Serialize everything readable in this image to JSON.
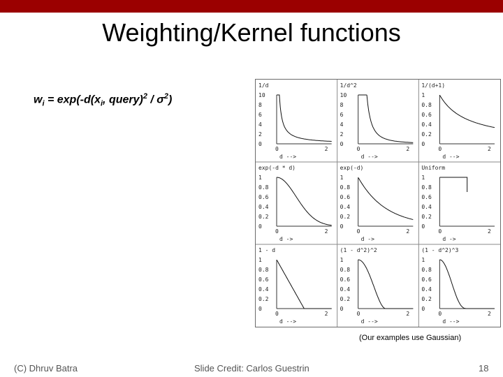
{
  "slide": {
    "title": "Weighting/Kernel functions",
    "formula": {
      "lead": "w",
      "lead_sub": "i",
      "eq": " = exp(-d(x",
      "x_sub": "i",
      "mid": ", query)",
      "sq1": "2",
      "div": " / σ",
      "sq2": "2",
      "close": ")"
    },
    "caption": "(Our examples use Gaussian)",
    "footer": {
      "left": "(C) Dhruv Batra",
      "center": "Slide Credit: Carlos Guestrin",
      "page": "18"
    },
    "accent_color": "#9b0000"
  },
  "figure": {
    "panels": [
      {
        "title": "1/d",
        "yticks": [
          "10",
          "8",
          "6",
          "4",
          "2",
          "0"
        ],
        "xticks": [
          "0",
          "2"
        ],
        "xlabel": "d -->",
        "kernel": "inv"
      },
      {
        "title": "1/d^2",
        "yticks": [
          "10",
          "8",
          "6",
          "4",
          "2",
          "0"
        ],
        "xticks": [
          "0",
          "2"
        ],
        "xlabel": "d -->",
        "kernel": "inv2"
      },
      {
        "title": "1/(d+1)",
        "yticks": [
          "1",
          "0.8",
          "0.6",
          "0.4",
          "0.2",
          "0"
        ],
        "xticks": [
          "0",
          "2"
        ],
        "xlabel": "d -->",
        "kernel": "invp1"
      },
      {
        "title": "exp(-d * d)",
        "yticks": [
          "1",
          "0.8",
          "0.6",
          "0.4",
          "0.2",
          "0"
        ],
        "xticks": [
          "0",
          "2"
        ],
        "xlabel": "d ->",
        "kernel": "gauss"
      },
      {
        "title": "exp(-d)",
        "yticks": [
          "1",
          "0.8",
          "0.6",
          "0.4",
          "0.2",
          "0"
        ],
        "xticks": [
          "0",
          "2"
        ],
        "xlabel": "d ->",
        "kernel": "exp"
      },
      {
        "title": "Uniform",
        "yticks": [
          "1",
          "0.8",
          "0.6",
          "0.4",
          "0.2",
          "0"
        ],
        "xticks": [
          "0",
          "2"
        ],
        "xlabel": "d ->",
        "kernel": "uniform"
      },
      {
        "title": "1 - d",
        "yticks": [
          "1",
          "0.8",
          "0.6",
          "0.4",
          "0.2",
          "0"
        ],
        "xticks": [
          "0",
          "2"
        ],
        "xlabel": "d -->",
        "kernel": "linear"
      },
      {
        "title": "(1 - d^2)^2",
        "yticks": [
          "1",
          "0.8",
          "0.6",
          "0.4",
          "0.2",
          "0"
        ],
        "xticks": [
          "0",
          "2"
        ],
        "xlabel": "d -->",
        "kernel": "quartic"
      },
      {
        "title": "(1 - d^2)^3",
        "yticks": [
          "1",
          "0.8",
          "0.6",
          "0.4",
          "0.2",
          "0"
        ],
        "xticks": [
          "0",
          "2"
        ],
        "xlabel": "d -->",
        "kernel": "triweight"
      }
    ]
  }
}
